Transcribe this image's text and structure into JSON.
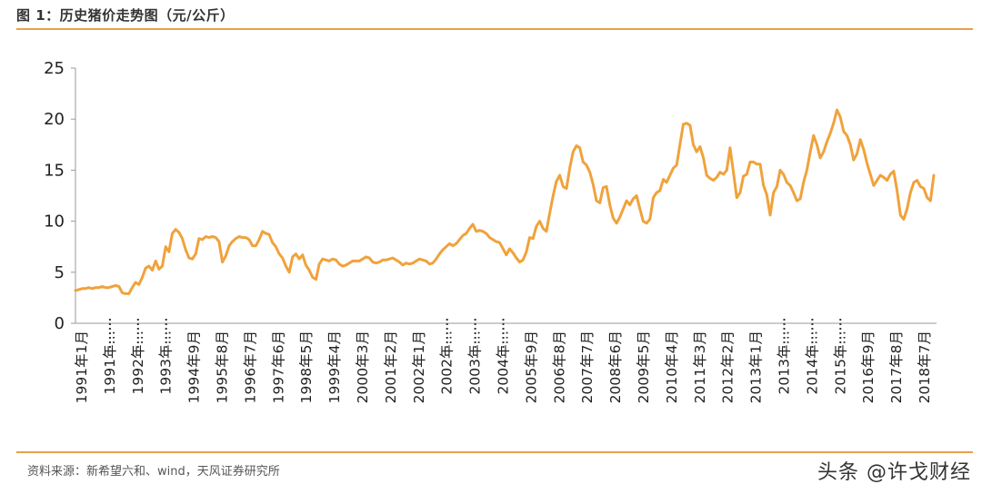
{
  "header": {
    "title": "图 1：历史猪价走势图（元/公斤）"
  },
  "footer": {
    "source": "资料来源：新希望六和、wind，天风证券研究所",
    "watermark": "头条 @许戈财经"
  },
  "colors": {
    "line": "#f0a23c",
    "rule": "#e8a04a",
    "axis": "#999999"
  },
  "chart_data": {
    "type": "line",
    "title": "",
    "xlabel": "",
    "ylabel": "",
    "ylim": [
      0,
      25
    ],
    "yticks": [
      0,
      5,
      10,
      15,
      20,
      25
    ],
    "grid": false,
    "legend": "none",
    "x_tick_labels": [
      "1991年1月",
      "1991年…",
      "1992年…",
      "1993年…",
      "1994年9月",
      "1995年8月",
      "1996年7月",
      "1997年6月",
      "1998年5月",
      "1999年4月",
      "2000年3月",
      "2001年2月",
      "2002年1月",
      "2002年…",
      "2003年…",
      "2004年…",
      "2005年9月",
      "2006年8月",
      "2007年7月",
      "2008年6月",
      "2009年5月",
      "2010年4月",
      "2011年3月",
      "2012年2月",
      "2013年1月",
      "2013年…",
      "2014年…",
      "2015年…",
      "2016年9月",
      "2017年8月",
      "2018年7月"
    ],
    "dotted_tick_indices": [
      1,
      2,
      3,
      13,
      14,
      15,
      25,
      26,
      27
    ],
    "series": [
      {
        "values": [
          3.2,
          3.3,
          3.4,
          3.4,
          3.5,
          3.4,
          3.5,
          3.5,
          3.6,
          3.5,
          3.5,
          3.6,
          3.7,
          3.6,
          3.0,
          2.9,
          2.9,
          3.5,
          4.0,
          3.8,
          4.5,
          5.4,
          5.6,
          5.2,
          6.1,
          5.3,
          5.6,
          7.5,
          7.0,
          8.8,
          9.2,
          8.9,
          8.3,
          7.2,
          6.4,
          6.3,
          6.8,
          8.3,
          8.2,
          8.5,
          8.4,
          8.5,
          8.4,
          8.0,
          6.0,
          6.6,
          7.6,
          8.0,
          8.3,
          8.5,
          8.4,
          8.4,
          8.2,
          7.6,
          7.6,
          8.2,
          9.0,
          8.8,
          8.7,
          7.9,
          7.5,
          6.8,
          6.4,
          5.6,
          5.0,
          6.5,
          6.8,
          6.3,
          6.7,
          5.7,
          5.2,
          4.5,
          4.3,
          5.8,
          6.3,
          6.2,
          6.1,
          6.3,
          6.2,
          5.8,
          5.6,
          5.7,
          5.9,
          6.1,
          6.1,
          6.1,
          6.3,
          6.5,
          6.4,
          6.0,
          5.9,
          6.0,
          6.2,
          6.2,
          6.3,
          6.4,
          6.2,
          6.0,
          5.7,
          5.9,
          5.8,
          5.9,
          6.1,
          6.3,
          6.2,
          6.1,
          5.8,
          5.9,
          6.3,
          6.8,
          7.2,
          7.5,
          7.8,
          7.6,
          7.8,
          8.2,
          8.6,
          8.8,
          9.3,
          9.7,
          9.0,
          9.1,
          9.0,
          8.8,
          8.4,
          8.2,
          8.0,
          7.9,
          7.3,
          6.7,
          7.3,
          6.9,
          6.4,
          6.0,
          6.2,
          7.0,
          8.4,
          8.3,
          9.5,
          10.0,
          9.3,
          9.0,
          10.8,
          12.5,
          13.9,
          14.5,
          13.4,
          13.2,
          15.2,
          16.8,
          17.4,
          17.2,
          15.8,
          15.5,
          14.8,
          13.6,
          12.0,
          11.8,
          13.3,
          13.4,
          11.6,
          10.3,
          9.8,
          10.4,
          11.2,
          12.0,
          11.6,
          12.2,
          12.5,
          11.2,
          10.0,
          9.8,
          10.2,
          12.3,
          12.8,
          13.0,
          14.1,
          13.8,
          14.5,
          15.2,
          15.5,
          17.5,
          19.5,
          19.6,
          19.4,
          17.5,
          16.8,
          17.3,
          16.2,
          14.5,
          14.2,
          14.0,
          14.3,
          14.8,
          14.6,
          15.0,
          17.2,
          14.8,
          12.3,
          12.8,
          14.4,
          14.6,
          15.8,
          15.8,
          15.6,
          15.6,
          13.5,
          12.6,
          10.6,
          12.8,
          13.4,
          15.0,
          14.6,
          13.8,
          13.5,
          12.8,
          12.0,
          12.2,
          13.8,
          15.0,
          16.8,
          18.4,
          17.5,
          16.2,
          16.8,
          17.8,
          18.6,
          19.6,
          20.9,
          20.2,
          18.8,
          18.4,
          17.5,
          16.0,
          16.6,
          18.0,
          17.0,
          15.7,
          14.6,
          13.5,
          14.0,
          14.5,
          14.3,
          14.0,
          14.6,
          14.9,
          13.0,
          10.6,
          10.2,
          11.2,
          12.8,
          13.8,
          14.0,
          13.4,
          13.2,
          12.3,
          12.0,
          14.5
        ]
      }
    ]
  }
}
